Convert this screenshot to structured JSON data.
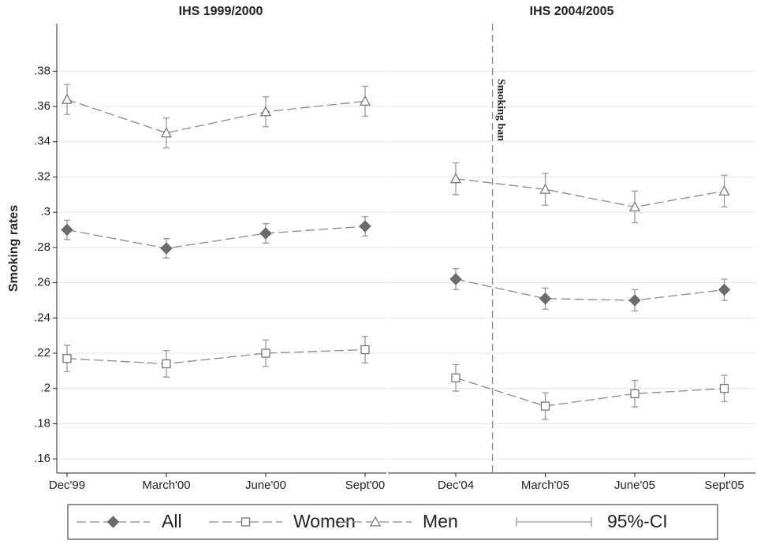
{
  "chart_data": [
    {
      "type": "line",
      "title": "IHS 1999/2000",
      "ylabel": "Smoking rates",
      "categories": [
        "Dec'99",
        "March'00",
        "June'00",
        "Sept'00"
      ],
      "series": [
        {
          "name": "All",
          "color": "#6b6b6b",
          "marker": "diamond",
          "values": [
            0.29,
            0.2795,
            0.288,
            0.292
          ],
          "errors": [
            0.0055,
            0.0055,
            0.0055,
            0.0055
          ]
        },
        {
          "name": "Women",
          "color": "#777777",
          "marker": "square",
          "values": [
            0.217,
            0.214,
            0.22,
            0.222
          ],
          "errors": [
            0.0075,
            0.0075,
            0.0075,
            0.0075
          ]
        },
        {
          "name": "Men",
          "color": "#777777",
          "marker": "triangle",
          "values": [
            0.364,
            0.345,
            0.357,
            0.363
          ],
          "errors": [
            0.0085,
            0.0085,
            0.0085,
            0.0085
          ]
        }
      ],
      "errors_name": "95%-CI",
      "ylim": [
        0.152,
        0.407
      ],
      "yticks": [
        {
          "value": 0.16,
          "label": ".16"
        },
        {
          "value": 0.18,
          "label": ".18"
        },
        {
          "value": 0.2,
          "label": ".2"
        },
        {
          "value": 0.22,
          "label": ".22"
        },
        {
          "value": 0.24,
          "label": ".24"
        },
        {
          "value": 0.26,
          "label": ".26"
        },
        {
          "value": 0.28,
          "label": ".28"
        },
        {
          "value": 0.3,
          "label": ".3"
        },
        {
          "value": 0.32,
          "label": ".32"
        },
        {
          "value": 0.34,
          "label": ".34"
        },
        {
          "value": 0.36,
          "label": ".36"
        },
        {
          "value": 0.38,
          "label": ".38"
        }
      ],
      "grid": true
    },
    {
      "type": "line",
      "title": "IHS 2004/2005",
      "annotation": "Smoking ban",
      "categories": [
        "Dec'04",
        "March'05",
        "June'05",
        "Sept'05"
      ],
      "series": [
        {
          "color": "#6b6b6b",
          "marker": "diamond",
          "values": [
            0.262,
            0.251,
            0.25,
            0.256
          ],
          "errors": [
            0.006,
            0.006,
            0.006,
            0.006
          ]
        },
        {
          "color": "#777777",
          "marker": "square",
          "values": [
            0.206,
            0.19,
            0.197,
            0.2
          ],
          "errors": [
            0.0075,
            0.0075,
            0.0075,
            0.0075
          ]
        },
        {
          "color": "#777777",
          "marker": "triangle",
          "values": [
            0.319,
            0.313,
            0.303,
            0.312
          ],
          "errors": [
            0.009,
            0.009,
            0.009,
            0.009
          ]
        }
      ],
      "ylim": [
        0.152,
        0.407
      ],
      "grid": true
    }
  ]
}
